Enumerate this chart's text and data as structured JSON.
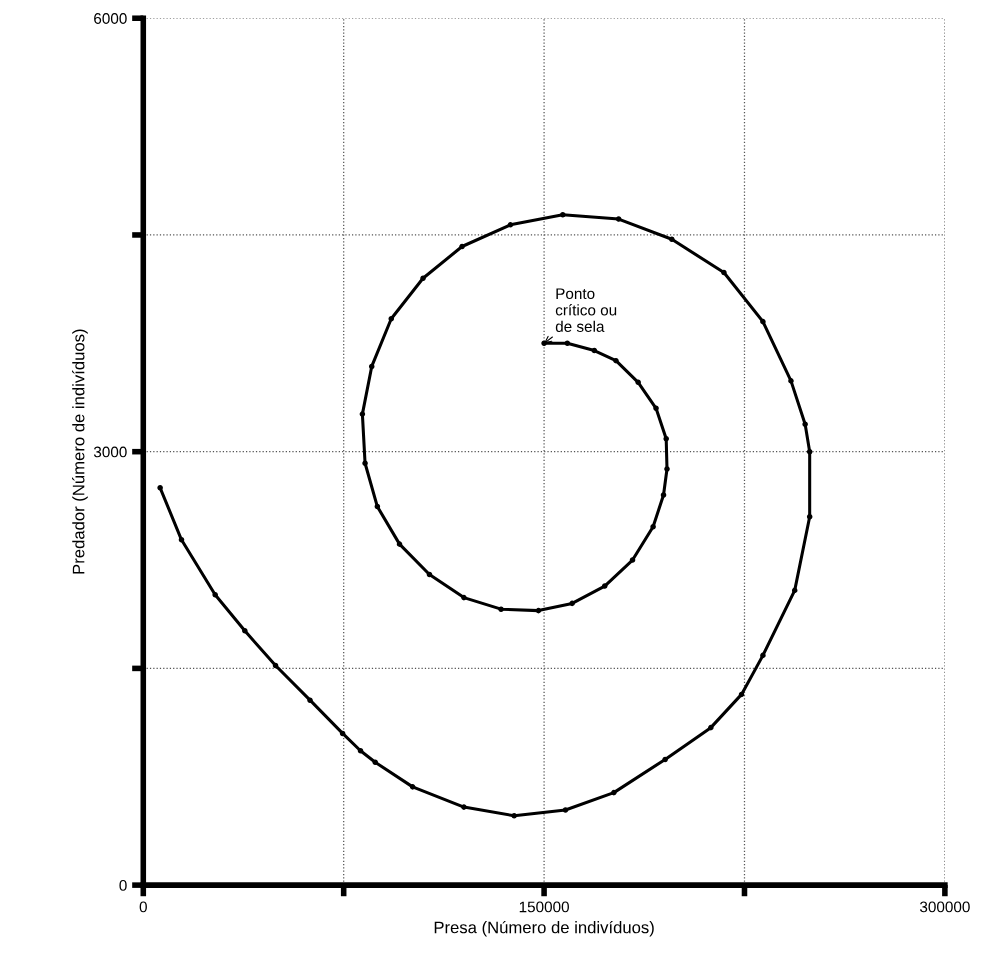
{
  "chart_data": {
    "type": "line",
    "xlabel": "Presa (Número de indivíduos)",
    "ylabel": "Predador (Número de indivíduos)",
    "series": [
      {
        "color": "#000000",
        "x": [
          6300,
          14300,
          26900,
          38000,
          49500,
          62400,
          74600,
          81300,
          86800,
          100800,
          120000,
          138800,
          158000,
          176100,
          195300,
          212400,
          223900,
          231900,
          243800,
          249400,
          249400,
          247700,
          242400,
          231900,
          217300,
          197800,
          177900,
          157000,
          137400,
          119300,
          104700,
          92800,
          85500,
          82000,
          83000,
          87600,
          95900,
          107100,
          120000,
          133900,
          147900,
          160500,
          172700,
          183100,
          190800,
          194700,
          196000,
          195700,
          191900,
          185200,
          176900,
          168800,
          158700,
          150000
        ],
        "values": [
          2750,
          2390,
          2010,
          1760,
          1520,
          1280,
          1050,
          930,
          850,
          680,
          540,
          480,
          520,
          640,
          870,
          1090,
          1320,
          1590,
          2040,
          2550,
          3000,
          3190,
          3490,
          3900,
          4240,
          4470,
          4610,
          4640,
          4570,
          4420,
          4200,
          3920,
          3590,
          3260,
          2920,
          2620,
          2360,
          2150,
          1990,
          1910,
          1900,
          1950,
          2070,
          2250,
          2480,
          2700,
          2880,
          3090,
          3300,
          3480,
          3630,
          3700,
          3750,
          3750
        ]
      }
    ],
    "xlim": [
      0,
      300000
    ],
    "ylim": [
      0,
      6000
    ],
    "xticks": [
      0,
      {
        "value": 75000,
        "label": null
      },
      150000,
      {
        "value": 225000,
        "label": null
      },
      300000
    ],
    "yticks": [
      0,
      {
        "value": 1500,
        "label": null
      },
      3000,
      {
        "value": 4500,
        "label": null
      },
      6000
    ],
    "grid": true,
    "marker": "circle",
    "line_style": "solid",
    "annotations": [
      {
        "text": "Ponto\ncrítico ou\nde sela",
        "x": 150000,
        "y": 3750
      }
    ]
  }
}
